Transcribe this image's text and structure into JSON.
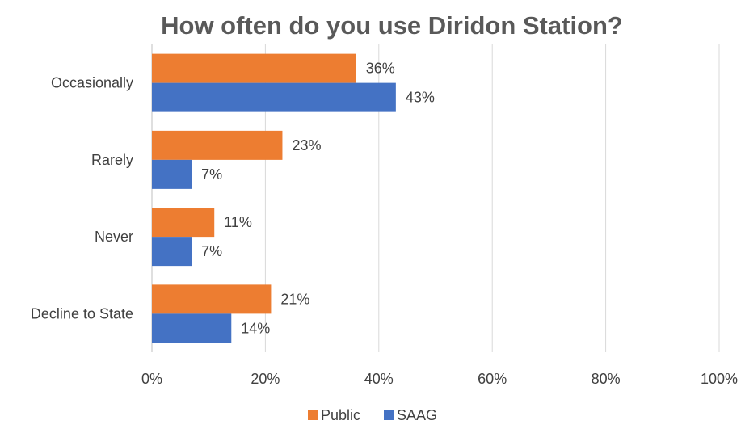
{
  "chart_data": {
    "type": "bar",
    "orientation": "horizontal",
    "title": "How often do you use Diridon Station?",
    "categories": [
      "Occasionally",
      "Rarely",
      "Never",
      "Decline to State"
    ],
    "series": [
      {
        "name": "Public",
        "values": [
          36,
          23,
          11,
          21
        ],
        "labels": [
          "36%",
          "23%",
          "11%",
          "21%"
        ],
        "color": "#ED7D31"
      },
      {
        "name": "SAAG",
        "values": [
          43,
          7,
          7,
          14
        ],
        "labels": [
          "43%",
          "7%",
          "7%",
          "14%"
        ],
        "color": "#4472C4"
      }
    ],
    "xlim": [
      0,
      100
    ],
    "x_ticks": [
      "0%",
      "20%",
      "40%",
      "60%",
      "80%",
      "100%"
    ],
    "xlabel": "",
    "ylabel": "",
    "grid": true,
    "legend_position": "bottom"
  }
}
